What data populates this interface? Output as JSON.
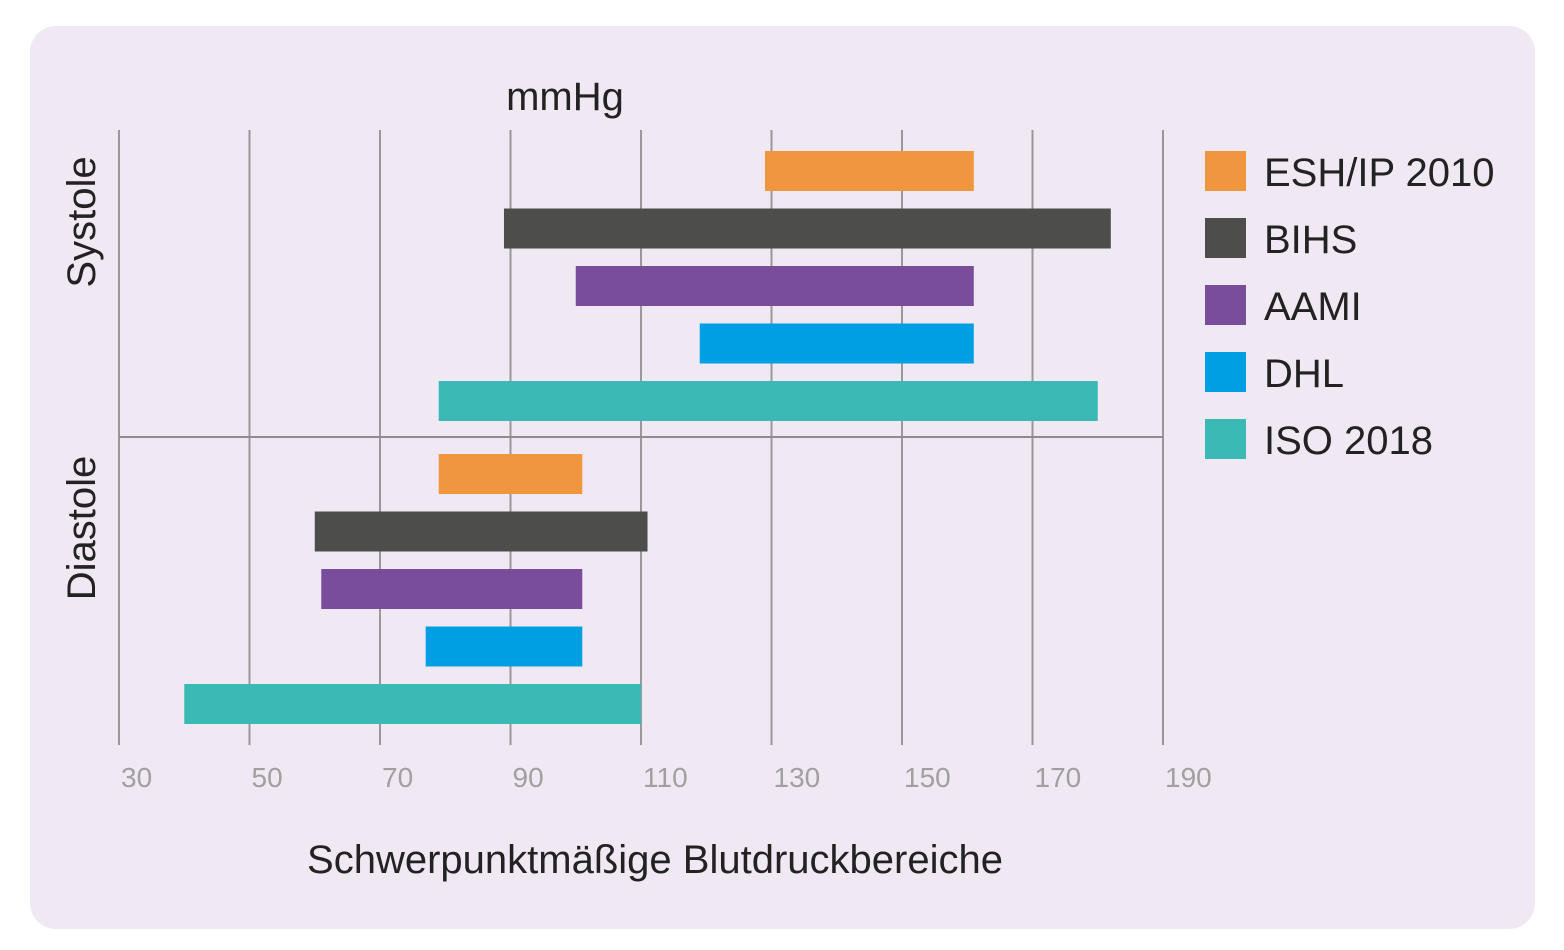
{
  "chart_data": {
    "type": "bar",
    "orientation": "horizontal-range",
    "unit_label": "mmHg",
    "xlabel": "Schwerpunktmäßige Blutdruckbereiche",
    "ylabel": "",
    "xlim": [
      30,
      190
    ],
    "x_ticks": [
      30,
      50,
      70,
      90,
      110,
      130,
      150,
      170,
      190
    ],
    "grid": true,
    "legend_position": "right",
    "groups": [
      "Systole",
      "Diastole"
    ],
    "series": [
      {
        "name": "ESH/IP 2010",
        "color": "#f0963e",
        "ranges": {
          "Systole": [
            129,
            161
          ],
          "Diastole": [
            79,
            101
          ]
        }
      },
      {
        "name": "BIHS",
        "color": "#4d4e4c",
        "ranges": {
          "Systole": [
            89,
            182
          ],
          "Diastole": [
            60,
            111
          ]
        }
      },
      {
        "name": "AAMI",
        "color": "#7a4c9c",
        "ranges": {
          "Systole": [
            100,
            161
          ],
          "Diastole": [
            61,
            101
          ]
        }
      },
      {
        "name": "DHL",
        "color": "#009fe3",
        "ranges": {
          "Systole": [
            119,
            161
          ],
          "Diastole": [
            77,
            101
          ]
        }
      },
      {
        "name": "ISO 2018",
        "color": "#3ab9b5",
        "ranges": {
          "Systole": [
            79,
            180
          ],
          "Diastole": [
            40,
            110
          ]
        }
      }
    ]
  }
}
